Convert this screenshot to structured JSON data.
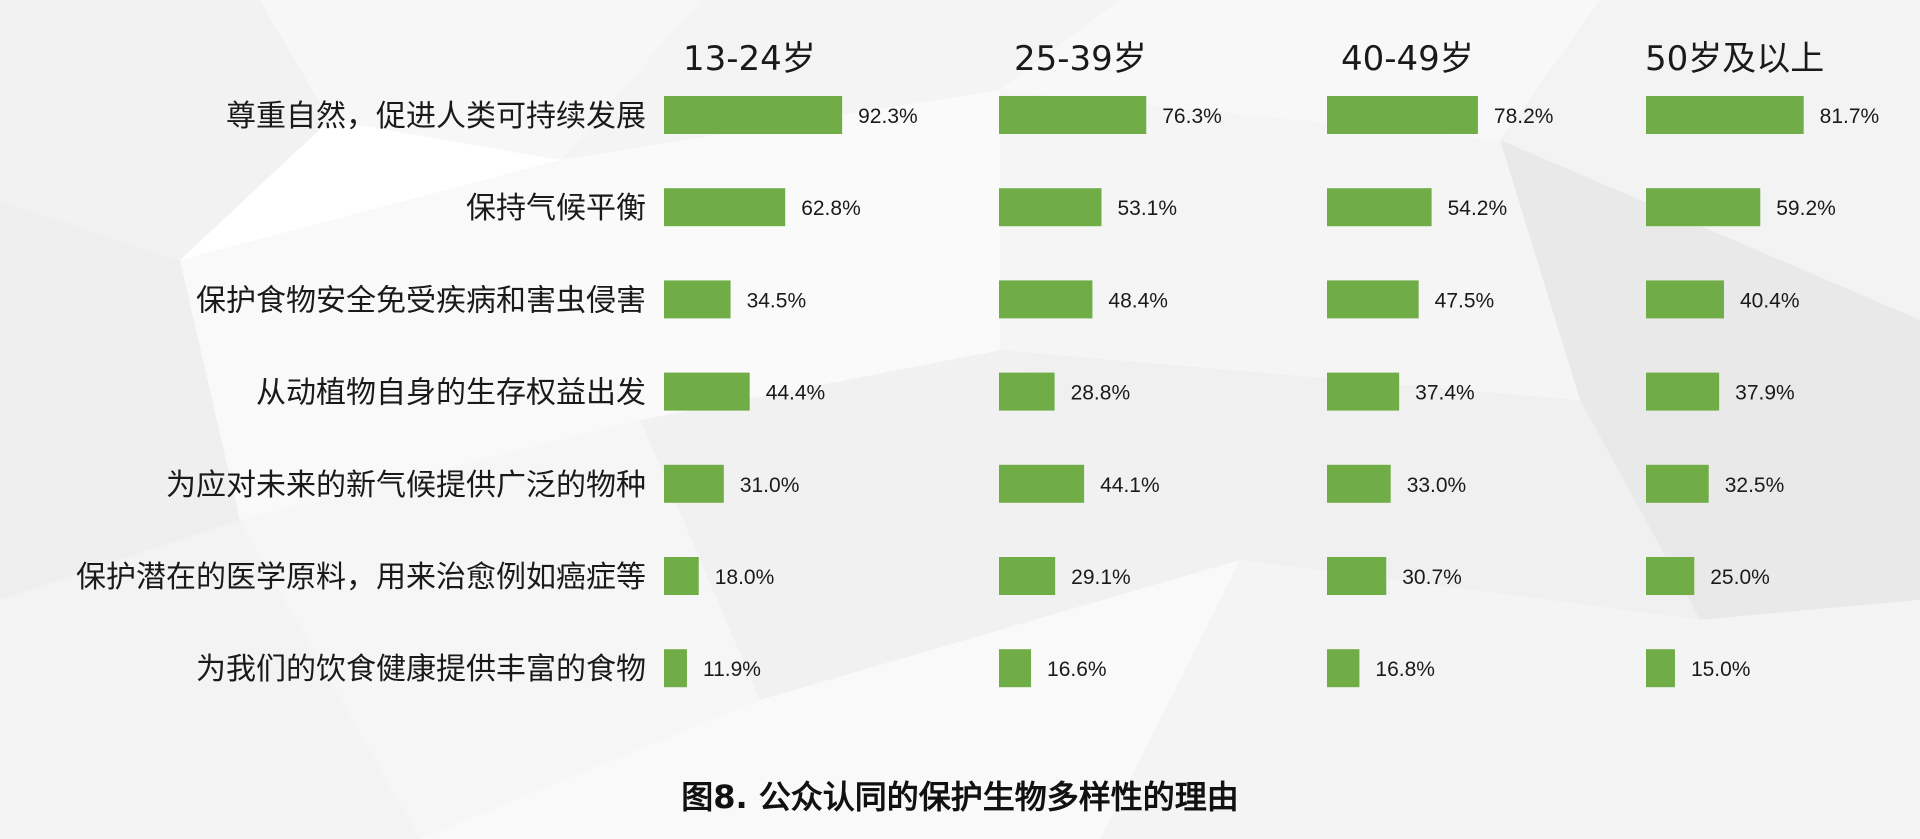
{
  "colors": {
    "bar": "#70ad47",
    "text": "#1a1a1a",
    "background": "#ffffff"
  },
  "caption": "图8. 公众认同的保护生物多样性的理由",
  "chart_data": {
    "type": "bar",
    "orientation": "horizontal",
    "title": "图8. 公众认同的保护生物多样性的理由",
    "categories": [
      "尊重自然，促进人类可持续发展",
      "保持气候平衡",
      "保护食物安全免受疾病和害虫侵害",
      "从动植物自身的生存权益出发",
      "为应对未来的新气候提供广泛的物种",
      "保护潜在的医学原料，用来治愈例如癌症等",
      "为我们的饮食健康提供丰富的食物"
    ],
    "series": [
      {
        "name": "13-24岁",
        "values": [
          92.3,
          62.8,
          34.5,
          44.4,
          31.0,
          18.0,
          11.9
        ],
        "labels": [
          "92.3%",
          "62.8%",
          "34.5%",
          "44.4%",
          "31.0%",
          "18.0%",
          "11.9%"
        ]
      },
      {
        "name": "25-39岁",
        "values": [
          76.3,
          53.1,
          48.4,
          28.8,
          44.1,
          29.1,
          16.6
        ],
        "labels": [
          "76.3%",
          "53.1%",
          "48.4%",
          "28.8%",
          "44.1%",
          "29.1%",
          "16.6%"
        ]
      },
      {
        "name": "40-49岁",
        "values": [
          78.2,
          54.2,
          47.5,
          37.4,
          33.0,
          30.7,
          16.8
        ],
        "labels": [
          "78.2%",
          "54.2%",
          "47.5%",
          "37.4%",
          "33.0%",
          "30.7%",
          "16.8%"
        ]
      },
      {
        "name": "50岁及以上",
        "values": [
          81.7,
          59.2,
          40.4,
          37.9,
          32.5,
          25.0,
          15.0
        ],
        "labels": [
          "81.7%",
          "59.2%",
          "40.4%",
          "37.9%",
          "32.5%",
          "25.0%",
          "15.0%"
        ]
      }
    ],
    "value_unit": "%",
    "xlim": [
      0,
      100
    ],
    "grid": false,
    "legend": "none"
  }
}
